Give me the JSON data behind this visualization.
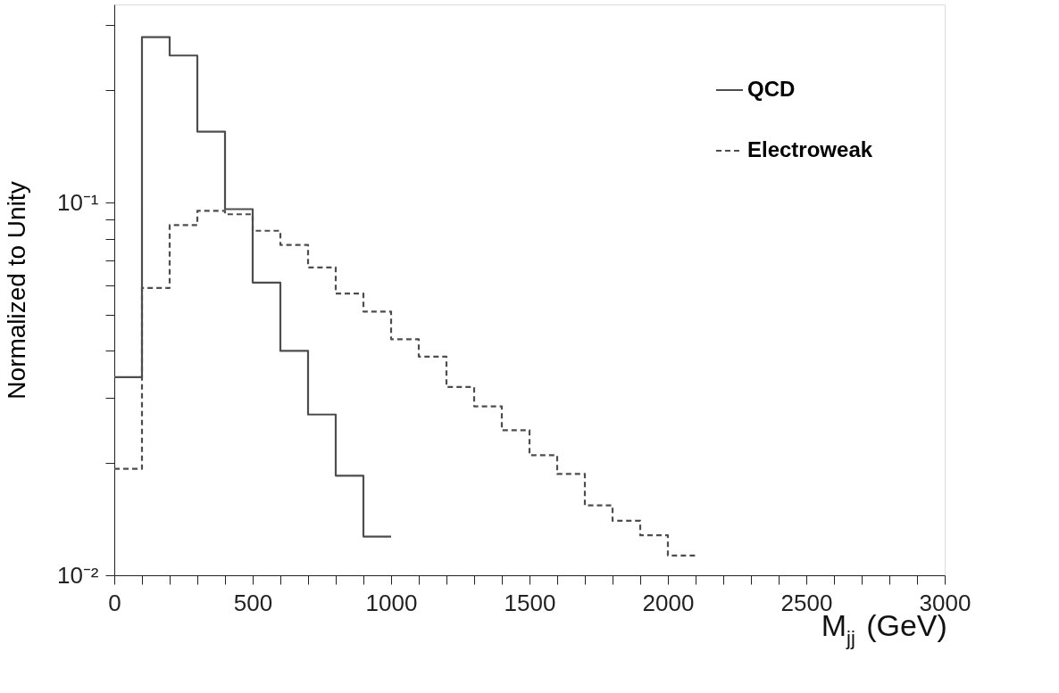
{
  "chart_data": {
    "type": "histogram",
    "xlabel": "M$_{jj}$ (GeV)",
    "ylabel": "Normalized to Unity",
    "log": "y",
    "grid": false,
    "legend": "top right",
    "bins": [
      0,
      100,
      200,
      300,
      400,
      500,
      600,
      700,
      800,
      900,
      1000,
      1100,
      1200,
      1300,
      1400,
      1500,
      1600,
      1700,
      1800,
      1900,
      2000,
      2100
    ],
    "series": [
      {
        "name": "QCD",
        "color": "#4d4d4d",
        "line_style": "solid",
        "bins": [
          0,
          100,
          200,
          300,
          400,
          500,
          600,
          700,
          800,
          900,
          1000
        ],
        "values": [
          0.034,
          0.278,
          0.248,
          0.155,
          0.096,
          0.061,
          0.04,
          0.027,
          0.0185,
          0.0127
        ]
      },
      {
        "name": "Electroweak",
        "color": "#4d4d4d",
        "line_style": "dashed",
        "values": [
          0.0193,
          0.059,
          0.087,
          0.095,
          0.093,
          0.084,
          0.077,
          0.067,
          0.057,
          0.051,
          0.043,
          0.0386,
          0.032,
          0.0284,
          0.0245,
          0.021,
          0.0187,
          0.0154,
          0.014,
          0.0128,
          0.0113
        ]
      }
    ],
    "xlim": [
      0,
      3000
    ],
    "xticks": [
      0,
      {
        "value": 100,
        "label": null
      },
      {
        "value": 200,
        "label": null
      },
      {
        "value": 300,
        "label": null
      },
      {
        "value": 400,
        "label": null
      },
      500,
      {
        "value": 600,
        "label": null
      },
      {
        "value": 700,
        "label": null
      },
      {
        "value": 800,
        "label": null
      },
      {
        "value": 900,
        "label": null
      },
      1000,
      {
        "value": 1100,
        "label": null
      },
      {
        "value": 1200,
        "label": null
      },
      {
        "value": 1300,
        "label": null
      },
      {
        "value": 1400,
        "label": null
      },
      1500,
      {
        "value": 1600,
        "label": null
      },
      {
        "value": 1700,
        "label": null
      },
      {
        "value": 1800,
        "label": null
      },
      {
        "value": 1900,
        "label": null
      },
      2000,
      {
        "value": 2100,
        "label": null
      },
      {
        "value": 2200,
        "label": null
      },
      {
        "value": 2300,
        "label": null
      },
      {
        "value": 2400,
        "label": null
      },
      2500,
      {
        "value": 2600,
        "label": null
      },
      {
        "value": 2700,
        "label": null
      },
      {
        "value": 2800,
        "label": null
      },
      {
        "value": 2900,
        "label": null
      },
      3000
    ],
    "ylim": [
      0.01,
      0.34
    ],
    "yticks": [
      {
        "value": 0.01,
        "label": "10⁻²"
      },
      {
        "value": 0.02,
        "label": null
      },
      {
        "value": 0.03,
        "label": null
      },
      {
        "value": 0.04,
        "label": null
      },
      {
        "value": 0.05,
        "label": null
      },
      {
        "value": 0.06,
        "label": null
      },
      {
        "value": 0.07,
        "label": null
      },
      {
        "value": 0.08,
        "label": null
      },
      {
        "value": 0.09,
        "label": null
      },
      {
        "value": 0.1,
        "label": "10⁻¹"
      },
      {
        "value": 0.2,
        "label": null
      },
      {
        "value": 0.3,
        "label": null
      }
    ]
  }
}
